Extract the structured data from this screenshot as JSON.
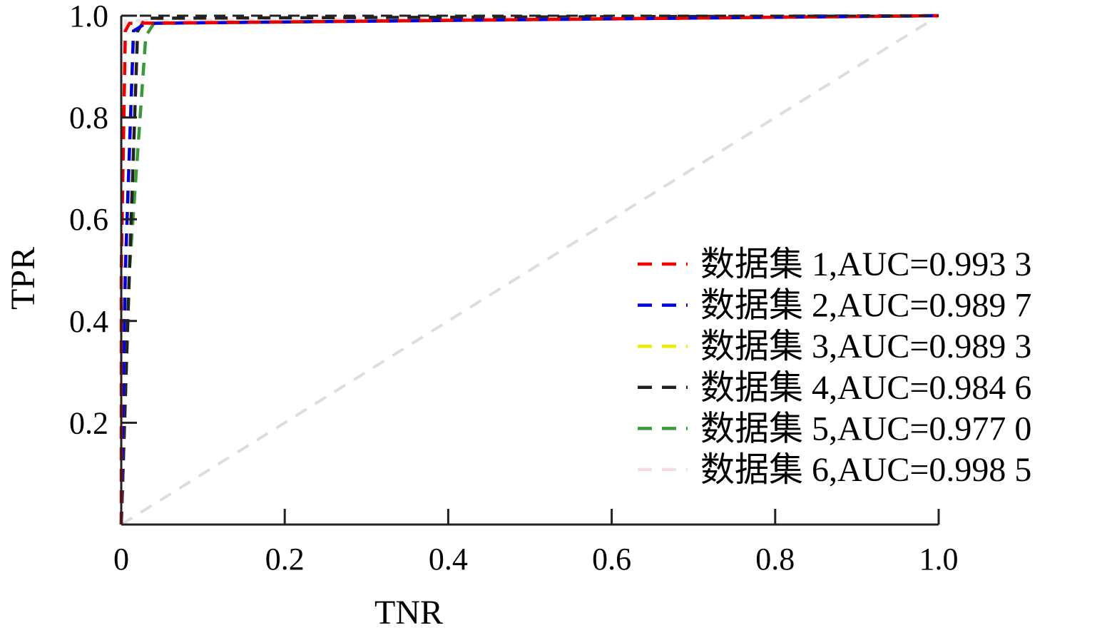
{
  "chart_data": {
    "type": "line",
    "title": "",
    "xlabel": "TNR",
    "ylabel": "TPR",
    "xlim": [
      0,
      1.0
    ],
    "ylim": [
      0,
      1.0
    ],
    "x_ticks": [
      0,
      0.2,
      0.4,
      0.6,
      0.8,
      1.0
    ],
    "x_tick_labels": [
      "0",
      "0.2",
      "0.4",
      "0.6",
      "0.8",
      "1.0"
    ],
    "y_ticks": [
      0.2,
      0.4,
      0.6,
      0.8,
      1.0
    ],
    "y_tick_labels": [
      "0.2",
      "0.4",
      "0.6",
      "0.8",
      "1.0"
    ],
    "grid": false,
    "legend_position": "right",
    "series": [
      {
        "name": "数据集 1,AUC=0.993 3",
        "color": "#ee0000",
        "x": [
          0,
          0.0,
          0.005,
          0.01,
          1.0
        ],
        "y": [
          0,
          0.5,
          0.97,
          0.985,
          1.0
        ]
      },
      {
        "name": "数据集 2,AUC=0.989 7",
        "color": "#0000dd",
        "x": [
          0,
          0.005,
          0.015,
          0.03,
          1.0
        ],
        "y": [
          0,
          0.5,
          0.97,
          0.985,
          1.0
        ]
      },
      {
        "name": "数据集 3,AUC=0.989 3",
        "color": "#eeee00",
        "x": [
          0,
          0.005,
          0.015,
          0.03,
          1.0
        ],
        "y": [
          0,
          0.5,
          0.97,
          0.985,
          1.0
        ]
      },
      {
        "name": "数据集 4,AUC=0.984 6",
        "color": "#222222",
        "x": [
          0,
          0.01,
          0.02,
          0.03,
          1.0
        ],
        "y": [
          0,
          0.5,
          0.97,
          0.995,
          1.0
        ]
      },
      {
        "name": "数据集 5,AUC=0.977 0",
        "color": "#3a9a3a",
        "x": [
          0,
          0.01,
          0.03,
          0.04,
          1.0
        ],
        "y": [
          0,
          0.5,
          0.96,
          0.985,
          1.0
        ]
      },
      {
        "name": "数据集 6,AUC=0.998 5",
        "color": "#f5dde2",
        "x": [
          0,
          0.0,
          0.005,
          1.0
        ],
        "y": [
          0,
          0.5,
          0.99,
          1.0
        ]
      }
    ],
    "reference_line": {
      "color": "#dddddd",
      "x": [
        0,
        1.0
      ],
      "y": [
        0,
        1.0
      ]
    }
  }
}
